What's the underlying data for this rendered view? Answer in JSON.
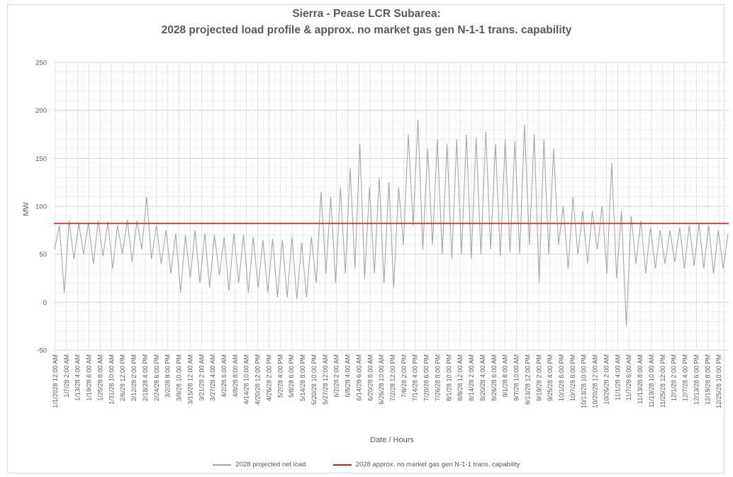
{
  "chart_data": {
    "type": "line",
    "title": [
      "Sierra - Pease LCR Subarea:",
      "2028 projected load profile & approx. no market gas gen N-1-1 trans. capability"
    ],
    "xlabel": "Date / Hours",
    "ylabel": "MW",
    "ylim": [
      -50,
      250
    ],
    "yticks": [
      -50,
      0,
      50,
      100,
      150,
      200,
      250
    ],
    "grid": true,
    "legend_position": "bottom",
    "x_tick_labels": [
      "1/1/2028 12:00 AM",
      "1/7/28 2:00 AM",
      "1/13/28 4:00 AM",
      "1/19/28 6:00 AM",
      "1/25/28 8:00 AM",
      "1/31/28 10:00 AM",
      "2/6/28 12:00 PM",
      "2/12/28 2:00 PM",
      "2/18/28 4:00 PM",
      "2/24/28 6:00 PM",
      "3/2/28 8:00 PM",
      "3/8/28 10:00 PM",
      "3/15/28 12:00 AM",
      "3/21/28 2:00 AM",
      "3/27/28 4:00 AM",
      "4/2/28 6:00 AM",
      "4/8/28 8:00 AM",
      "4/14/28 10:00 AM",
      "4/20/28 12:00 PM",
      "4/26/28 2:00 PM",
      "5/2/28 4:00 PM",
      "5/8/28 6:00 PM",
      "5/14/28 8:00 PM",
      "5/20/28 10:00 PM",
      "5/27/28 12:00 AM",
      "6/2/28 2:00 AM",
      "6/8/28 4:00 AM",
      "6/14/28 6:00 AM",
      "6/20/28 8:00 AM",
      "6/26/28 10:00 AM",
      "7/2/28 12:00 PM",
      "7/8/28 2:00 PM",
      "7/14/28 4:00 PM",
      "7/20/28 6:00 PM",
      "7/26/28 8:00 PM",
      "8/1/28 10:00 PM",
      "8/8/28 12:00 AM",
      "8/14/28 2:00 AM",
      "8/20/28 4:00 AM",
      "8/26/28 6:00 AM",
      "9/1/28 8:00 AM",
      "9/7/28 10:00 AM",
      "9/13/28 12:00 PM",
      "9/19/28 2:00 PM",
      "9/25/28 4:00 PM",
      "10/1/28 6:00 PM",
      "10/7/28 8:00 PM",
      "10/13/28 10:00 PM",
      "10/20/28 12:00 AM",
      "10/26/28 2:00 AM",
      "11/1/28 4:00 AM",
      "11/7/28 6:00 AM",
      "11/13/28 8:00 AM",
      "11/19/28 10:00 AM",
      "11/25/28 12:00 PM",
      "12/1/28 2:00 PM",
      "12/7/28 4:00 PM",
      "12/13/28 6:00 PM",
      "12/19/28 8:00 PM",
      "12/25/28 10:00 PM"
    ],
    "series": [
      {
        "name": "2028 projected net load",
        "color": "#a6a6a6",
        "values": [
          55,
          80,
          10,
          85,
          45,
          82,
          50,
          83,
          40,
          85,
          48,
          84,
          35,
          80,
          50,
          86,
          42,
          85,
          55,
          110,
          45,
          80,
          40,
          75,
          30,
          72,
          10,
          70,
          25,
          75,
          20,
          72,
          15,
          70,
          28,
          68,
          12,
          72,
          20,
          70,
          10,
          68,
          15,
          65,
          10,
          66,
          5,
          65,
          5,
          68,
          3,
          62,
          5,
          68,
          20,
          115,
          30,
          110,
          20,
          120,
          30,
          140,
          35,
          165,
          25,
          120,
          30,
          130,
          20,
          125,
          15,
          120,
          60,
          175,
          80,
          190,
          55,
          160,
          60,
          170,
          50,
          165,
          45,
          170,
          50,
          175,
          45,
          172,
          50,
          178,
          55,
          165,
          48,
          170,
          52,
          168,
          50,
          185,
          60,
          175,
          20,
          170,
          50,
          160,
          60,
          100,
          35,
          110,
          50,
          95,
          40,
          95,
          55,
          100,
          30,
          145,
          25,
          95,
          -25,
          90,
          40,
          85,
          30,
          78,
          35,
          75,
          40,
          75,
          42,
          78,
          35,
          80,
          38,
          82,
          35,
          80,
          30,
          75,
          35,
          72
        ]
      },
      {
        "name": "2028 approx. no market gas gen N-1-1 trans. capability",
        "color": "#e8161b",
        "values": [
          82,
          82
        ]
      }
    ]
  }
}
